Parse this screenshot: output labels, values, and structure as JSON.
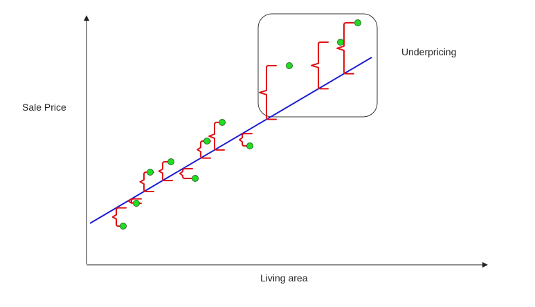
{
  "diagram": {
    "y_axis_label": "Sale Price",
    "x_axis_label": "Living area",
    "annotation": "Underpricing"
  },
  "colors": {
    "axis": "#222222",
    "regression_line": "#1a1ad6",
    "residual_bracket": "#e01010",
    "point_fill": "#22dd22",
    "point_stroke": "#2a6a2a",
    "highlight_box": "#333333"
  }
}
